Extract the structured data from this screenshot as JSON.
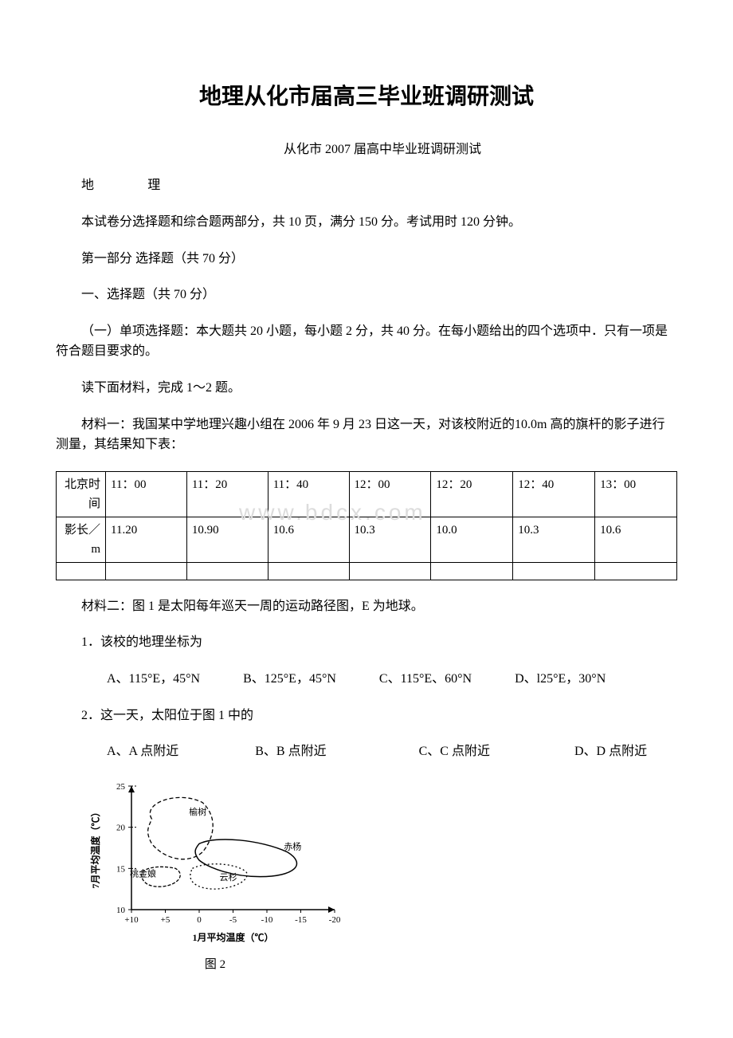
{
  "title": "地理从化市届高三毕业班调研测试",
  "subtitle": "从化市 2007 届高中毕业班调研测试",
  "subject": "地　　　理",
  "intro1": "本试卷分选择题和综合题两部分，共 10 页，满分 150 分。考试用时 120 分钟。",
  "section1": "第一部分 选择题（共 70 分）",
  "section1a": "一、选择题（共 70 分）",
  "section1b": "（一）单项选择题：本大题共 20 小题，每小题 2 分，共 40 分。在每小题给出的四个选项中．只有一项是符合题目要求的。",
  "material_intro": "读下面材料，完成 1～2 题。",
  "material1": "材料一：我国某中学地理兴趣小组在 2006 年 9 月 23 日这一天，对该校附近的10.0m 高的旗杆的影子进行测量，其结果知下表：",
  "table": {
    "row1_label": "北京时间",
    "row1_vals": [
      "11：00",
      "11：20",
      "11：40",
      "12：00",
      "12：20",
      "12：40",
      "13：00"
    ],
    "row2_label": "影长／m",
    "row2_vals": [
      "11.20",
      "10.90",
      "10.6",
      "10.3",
      "10.0",
      "10.3",
      "10.6"
    ]
  },
  "material2": "材料二：图 1 是太阳每年巡天一周的运动路径图，E 为地球。",
  "q1": "1．该校的地理坐标为",
  "q1_opts": {
    "A": "A、115°E，45°N",
    "B": "B、125°E，45°N",
    "C": "C、115°E、60°N",
    "D": "D、l25°E，30°N"
  },
  "q2": "2．这一天，太阳位于图 1 中的",
  "q2_opts": {
    "A": "A、A 点附近",
    "B": "B、B 点附近",
    "C": "C、C 点附近",
    "D": "D、D 点附近"
  },
  "figure2": {
    "caption": "图 2",
    "y_label": "7月平均温度（℃）",
    "x_label": "1月平均温度（℃）",
    "y_min": 10,
    "y_max": 25,
    "y_step": 5,
    "x_ticks": [
      "+10",
      "+5",
      "0",
      "-5",
      "-10",
      "-15",
      "-20"
    ],
    "tree_labels": [
      "榆树",
      "赤杨",
      "桃金娘",
      "云杉"
    ],
    "axis_color": "#000000",
    "line_color": "#000000",
    "bg_color": "#ffffff",
    "font_size": 11
  },
  "watermark": "www.bdcx.com"
}
